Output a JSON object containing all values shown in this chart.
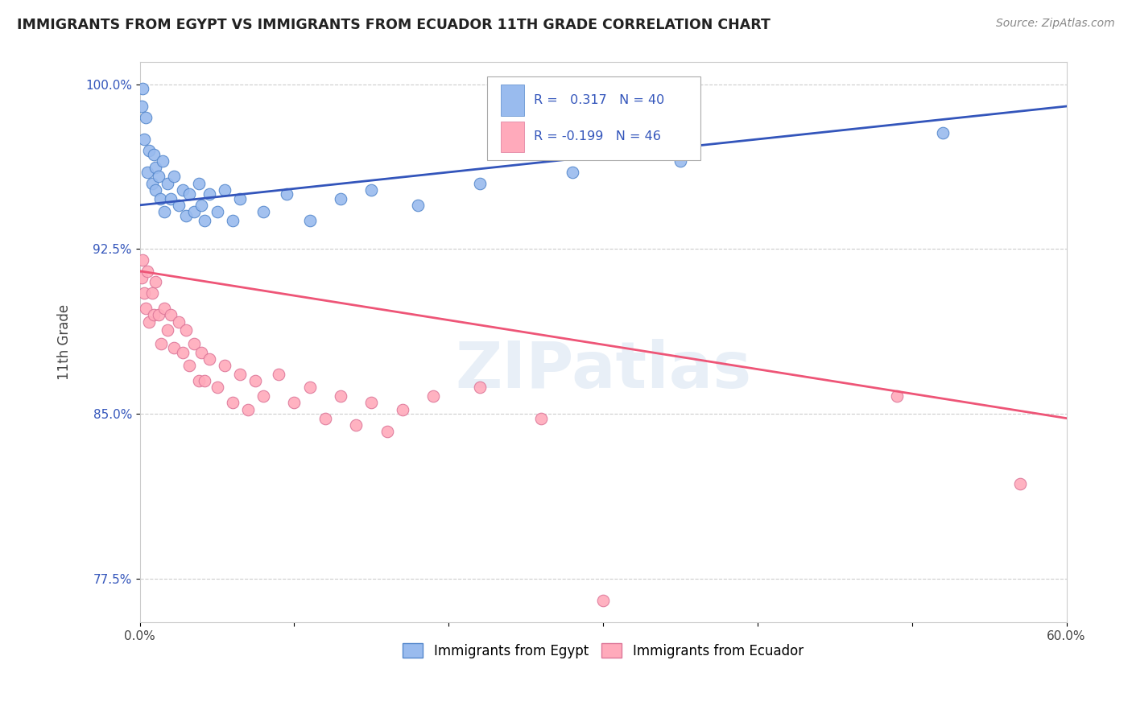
{
  "title": "IMMIGRANTS FROM EGYPT VS IMMIGRANTS FROM ECUADOR 11TH GRADE CORRELATION CHART",
  "source": "Source: ZipAtlas.com",
  "ylabel": "11th Grade",
  "xmin": 0.0,
  "xmax": 0.6,
  "ymin": 0.755,
  "ymax": 1.01,
  "yticks": [
    0.775,
    0.85,
    0.925,
    1.0
  ],
  "ytick_labels": [
    "77.5%",
    "85.0%",
    "92.5%",
    "100.0%"
  ],
  "egypt_color": "#99BBEE",
  "egypt_edge_color": "#5588CC",
  "ecuador_color": "#FFAABB",
  "ecuador_edge_color": "#DD7799",
  "egypt_line_color": "#3355BB",
  "ecuador_line_color": "#EE5577",
  "legend_R_egypt": "R =  0.317",
  "legend_N_egypt": "N = 40",
  "legend_R_ecuador": "R = -0.199",
  "legend_N_ecuador": "N = 46",
  "egypt_trend_x0": 0.0,
  "egypt_trend_y0": 0.945,
  "egypt_trend_x1": 0.6,
  "egypt_trend_y1": 0.99,
  "ecuador_trend_x0": 0.0,
  "ecuador_trend_y0": 0.915,
  "ecuador_trend_x1": 0.6,
  "ecuador_trend_y1": 0.848,
  "egypt_scatter_x": [
    0.001,
    0.002,
    0.003,
    0.004,
    0.005,
    0.006,
    0.008,
    0.009,
    0.01,
    0.01,
    0.012,
    0.013,
    0.015,
    0.016,
    0.018,
    0.02,
    0.022,
    0.025,
    0.028,
    0.03,
    0.032,
    0.035,
    0.038,
    0.04,
    0.042,
    0.045,
    0.05,
    0.055,
    0.06,
    0.065,
    0.08,
    0.095,
    0.11,
    0.13,
    0.15,
    0.18,
    0.22,
    0.28,
    0.35,
    0.52
  ],
  "egypt_scatter_y": [
    0.99,
    0.998,
    0.975,
    0.985,
    0.96,
    0.97,
    0.955,
    0.968,
    0.952,
    0.962,
    0.958,
    0.948,
    0.965,
    0.942,
    0.955,
    0.948,
    0.958,
    0.945,
    0.952,
    0.94,
    0.95,
    0.942,
    0.955,
    0.945,
    0.938,
    0.95,
    0.942,
    0.952,
    0.938,
    0.948,
    0.942,
    0.95,
    0.938,
    0.948,
    0.952,
    0.945,
    0.955,
    0.96,
    0.965,
    0.978
  ],
  "ecuador_scatter_x": [
    0.001,
    0.002,
    0.003,
    0.004,
    0.005,
    0.006,
    0.008,
    0.009,
    0.01,
    0.012,
    0.014,
    0.016,
    0.018,
    0.02,
    0.022,
    0.025,
    0.028,
    0.03,
    0.032,
    0.035,
    0.038,
    0.04,
    0.042,
    0.045,
    0.05,
    0.055,
    0.06,
    0.065,
    0.07,
    0.075,
    0.08,
    0.09,
    0.1,
    0.11,
    0.12,
    0.13,
    0.14,
    0.15,
    0.16,
    0.17,
    0.19,
    0.22,
    0.26,
    0.3,
    0.49,
    0.57
  ],
  "ecuador_scatter_y": [
    0.912,
    0.92,
    0.905,
    0.898,
    0.915,
    0.892,
    0.905,
    0.895,
    0.91,
    0.895,
    0.882,
    0.898,
    0.888,
    0.895,
    0.88,
    0.892,
    0.878,
    0.888,
    0.872,
    0.882,
    0.865,
    0.878,
    0.865,
    0.875,
    0.862,
    0.872,
    0.855,
    0.868,
    0.852,
    0.865,
    0.858,
    0.868,
    0.855,
    0.862,
    0.848,
    0.858,
    0.845,
    0.855,
    0.842,
    0.852,
    0.858,
    0.862,
    0.848,
    0.765,
    0.858,
    0.818
  ]
}
